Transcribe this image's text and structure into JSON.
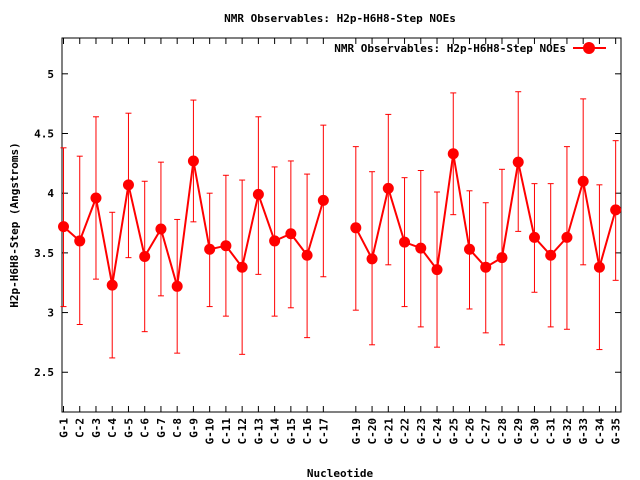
{
  "chart_data": {
    "type": "line",
    "title": "NMR Observables: H2p-H6H8-Step NOEs",
    "xlabel": "Nucleotide",
    "ylabel": "H2p-H6H8-Step (Angstroms)",
    "ylim": [
      2.167,
      5.3
    ],
    "yticks": [
      2.5,
      3,
      3.5,
      4,
      4.5,
      5
    ],
    "ytick_labels": [
      "2.5",
      "3",
      "3.5",
      "4",
      "4.5",
      "5"
    ],
    "legend_position": "top-right",
    "grid": false,
    "series": [
      {
        "name": "NMR Observables: H2p-H6H8-Step NOEs",
        "color": "#ff0000",
        "x_positions": [
          1,
          2,
          3,
          4,
          5,
          6,
          7,
          8,
          9,
          10,
          11,
          12,
          13,
          14,
          15,
          16,
          17,
          19,
          20,
          21,
          22,
          23,
          24,
          25,
          26,
          27,
          28,
          29,
          30,
          31,
          32,
          33,
          34,
          35
        ],
        "categories": [
          "G-1",
          "C-2",
          "G-3",
          "C-4",
          "G-5",
          "C-6",
          "G-7",
          "C-8",
          "G-9",
          "G-10",
          "C-11",
          "C-12",
          "G-13",
          "C-14",
          "G-15",
          "C-16",
          "C-17",
          "G-19",
          "C-20",
          "G-21",
          "C-22",
          "G-23",
          "C-24",
          "G-25",
          "C-26",
          "C-27",
          "C-28",
          "G-29",
          "C-30",
          "C-31",
          "G-32",
          "G-33",
          "C-34",
          "G-35"
        ],
        "values": [
          3.72,
          3.6,
          3.96,
          3.23,
          4.07,
          3.47,
          3.7,
          3.22,
          4.27,
          3.53,
          3.56,
          3.38,
          3.99,
          3.6,
          3.66,
          3.48,
          3.94,
          3.71,
          3.45,
          4.04,
          3.59,
          3.54,
          3.36,
          4.33,
          3.53,
          3.38,
          3.46,
          4.26,
          3.63,
          3.48,
          3.63,
          4.1,
          3.38,
          3.86
        ],
        "err_low": [
          3.05,
          2.9,
          3.28,
          2.62,
          3.46,
          2.84,
          3.14,
          2.66,
          3.76,
          3.05,
          2.97,
          2.65,
          3.32,
          2.97,
          3.04,
          2.79,
          3.3,
          3.02,
          2.73,
          3.4,
          3.05,
          2.88,
          2.71,
          3.82,
          3.03,
          2.83,
          2.73,
          3.68,
          3.17,
          2.88,
          2.86,
          3.4,
          2.69,
          3.27
        ],
        "err_high": [
          4.38,
          4.31,
          4.64,
          3.84,
          4.67,
          4.1,
          4.26,
          3.78,
          4.78,
          4.0,
          4.15,
          4.11,
          4.64,
          4.22,
          4.27,
          4.16,
          4.57,
          4.39,
          4.18,
          4.66,
          4.13,
          4.19,
          4.01,
          4.84,
          4.02,
          3.92,
          4.2,
          4.85,
          4.08,
          4.08,
          4.39,
          4.79,
          4.07,
          4.44
        ]
      }
    ]
  }
}
